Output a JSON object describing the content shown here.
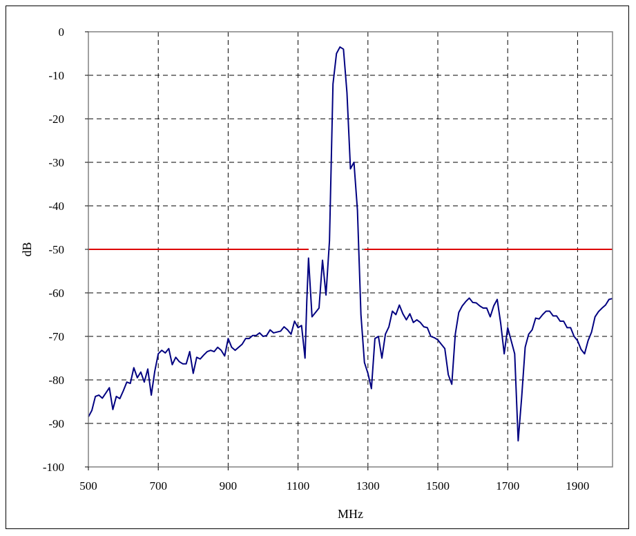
{
  "chart_data": {
    "type": "line",
    "xlabel": "MHz",
    "ylabel": "dB",
    "xlim": [
      500,
      2000
    ],
    "ylim": [
      -100,
      0
    ],
    "xticks": [
      500,
      700,
      900,
      1100,
      1300,
      1500,
      1700,
      1900
    ],
    "yticks": [
      0,
      -10,
      -20,
      -30,
      -40,
      -50,
      -60,
      -70,
      -80,
      -90,
      -100
    ],
    "grid": true,
    "series": [
      {
        "color": "#000080",
        "x": [
          500,
          510,
          520,
          530,
          540,
          550,
          560,
          570,
          580,
          590,
          600,
          610,
          620,
          630,
          640,
          650,
          660,
          670,
          680,
          690,
          700,
          710,
          720,
          730,
          740,
          750,
          760,
          770,
          780,
          790,
          800,
          810,
          820,
          830,
          840,
          850,
          860,
          870,
          880,
          890,
          900,
          910,
          920,
          930,
          940,
          950,
          960,
          970,
          980,
          990,
          1000,
          1010,
          1020,
          1030,
          1040,
          1050,
          1060,
          1070,
          1080,
          1090,
          1100,
          1110,
          1120,
          1125,
          1130,
          1140,
          1150,
          1160,
          1170,
          1180,
          1190,
          1200,
          1210,
          1220,
          1230,
          1240,
          1250,
          1260,
          1270,
          1280,
          1290,
          1300,
          1310,
          1320,
          1330,
          1340,
          1350,
          1360,
          1370,
          1380,
          1390,
          1400,
          1410,
          1420,
          1430,
          1440,
          1450,
          1460,
          1470,
          1480,
          1490,
          1500,
          1510,
          1520,
          1530,
          1540,
          1550,
          1560,
          1570,
          1580,
          1590,
          1600,
          1610,
          1620,
          1630,
          1640,
          1650,
          1660,
          1670,
          1680,
          1690,
          1700,
          1710,
          1720,
          1730,
          1740,
          1750,
          1760,
          1770,
          1780,
          1790,
          1800,
          1810,
          1820,
          1830,
          1840,
          1850,
          1860,
          1870,
          1880,
          1890,
          1900,
          1910,
          1920,
          1930,
          1940,
          1950,
          1960,
          1970,
          1980,
          1990,
          2000
        ],
        "y": [
          -88.5,
          -87,
          -83.8,
          -83.5,
          -84.2,
          -83,
          -81.8,
          -86.8,
          -83.8,
          -84.3,
          -82.5,
          -80.5,
          -80.8,
          -77.2,
          -79.5,
          -78.2,
          -80.5,
          -77.5,
          -83.5,
          -78,
          -74,
          -73.2,
          -73.8,
          -72.8,
          -76.5,
          -74.8,
          -75.8,
          -76.3,
          -76.3,
          -73.5,
          -78.5,
          -74.8,
          -75.2,
          -74.3,
          -73.5,
          -73.2,
          -73.5,
          -72.5,
          -73.2,
          -74.5,
          -70.5,
          -72.5,
          -73.2,
          -72.5,
          -71.8,
          -70.5,
          -70.5,
          -69.8,
          -69.8,
          -69.2,
          -70,
          -69.8,
          -68.5,
          -69.2,
          -69,
          -68.8,
          -67.8,
          -68.5,
          -69.5,
          -66.5,
          -68,
          -67.5,
          -75,
          -62,
          -52,
          -65.5,
          -64.5,
          -63.5,
          -52.5,
          -60.5,
          -48,
          -12,
          -5,
          -3.5,
          -4,
          -14,
          -31.5,
          -30,
          -41,
          -65,
          -76,
          -78.5,
          -82,
          -70.5,
          -70,
          -75,
          -69.5,
          -67.8,
          -64.2,
          -65,
          -62.8,
          -64.8,
          -66.2,
          -64.8,
          -66.8,
          -66.2,
          -66.8,
          -67.8,
          -68,
          -70,
          -70.3,
          -70.8,
          -71.8,
          -72.8,
          -78.8,
          -81,
          -69.5,
          -64.5,
          -63,
          -62,
          -61.2,
          -62.2,
          -62.3,
          -63,
          -63.5,
          -63.5,
          -65.5,
          -63,
          -61.5,
          -67,
          -74,
          -68,
          -71,
          -74,
          -94,
          -84,
          -72.5,
          -69.5,
          -68.5,
          -65.8,
          -66,
          -65,
          -64.2,
          -64.2,
          -65.3,
          -65.3,
          -66.5,
          -66.5,
          -68,
          -68,
          -70,
          -71,
          -73,
          -74,
          -71,
          -69,
          -65.5,
          -64.3,
          -63.5,
          -62.8,
          -61.5,
          -61.3
        ]
      }
    ],
    "limit_line": {
      "color": "#dd0000",
      "y": -50,
      "segments": [
        [
          500,
          1130
        ],
        [
          1290,
          2000
        ]
      ]
    }
  }
}
